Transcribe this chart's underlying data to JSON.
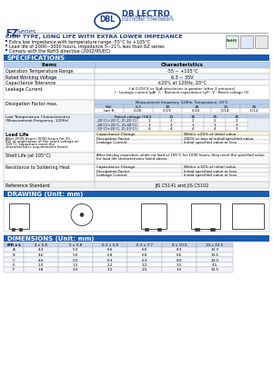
{
  "bg_color": "#ffffff",
  "title_series": "FZ Series",
  "chip_type_title": "CHIP TYPE, LONG LIFE WITH EXTRA LOWER IMPEDANCE",
  "features": [
    "Extra low impedance with temperature range -55°C to +105°C",
    "Load life of 2000~3000 hours, impedance 5~21% less than RZ series",
    "Comply with the RoHS directive (2002/95/EC)"
  ],
  "spec_header": "SPECIFICATIONS",
  "spec_rows": [
    [
      "Operation Temperature Range",
      "-55 ~ +105°C"
    ],
    [
      "Rated Working Voltage",
      "6.3 ~ 35V"
    ],
    [
      "Capacitance Tolerance",
      "±20% at 120Hz, 20°C"
    ]
  ],
  "leakage_label": "Leakage Current",
  "leakage_formula": "I ≤ 0.01CV or 3μA whichever is greater (after 2 minutes)",
  "leakage_subhead": [
    "I : Leakage current (μA)",
    "C : Nominal capacitance (μF)",
    "V : Rated voltage (V)"
  ],
  "dissipation_label": "Dissipation Factor max.",
  "dissipation_freq": "Measurement frequency: 120Hz, Temperature: 20°C",
  "dissipation_headers": [
    "WV",
    "6.3",
    "10",
    "16",
    "25",
    "35"
  ],
  "dissipation_values": [
    "tan δ",
    "0.26",
    "0.19",
    "0.16",
    "0.14",
    "0.12"
  ],
  "low_temp_label": "Low Temperature Characteristics\n(Measurement Frequency: 120Hz)",
  "low_temp_headers": [
    "Rated voltage (V)",
    "6.3",
    "10",
    "16",
    "25",
    "35"
  ],
  "low_temp_rows": [
    [
      "-25°C/+20°C, Z(-25°C)",
      "2",
      "2",
      "2",
      "2",
      "2"
    ],
    [
      "-40°C/+20°C, Z(-40°C)",
      "3",
      "3",
      "3",
      "3",
      "3"
    ],
    [
      "-55°C/+20°C, Z(-55°C)",
      "4",
      "4",
      "4",
      "4",
      "3"
    ]
  ],
  "load_label": "Load Life",
  "load_text1": "After 2000 hours (3000 hours for 35,",
  "load_text2": "6V) at application of the rated voltage at",
  "load_text3": "105°C, capacitors meet the",
  "load_text4": "characteristics requirements listed.",
  "load_rows": [
    [
      "Capacitance Change",
      "Within ±20% of initial value"
    ],
    [
      "Dissipation Factor",
      "200% or less of initial/specified value"
    ],
    [
      "Leakage Current",
      "Initial specified value or less"
    ]
  ],
  "shelf_label": "Shelf Life (at 105°C)",
  "shelf_text1": "After leaving capacitors under no load at 105°C for 1000 hours, they meet the specified value",
  "shelf_text2": "for load life characteristics listed above.",
  "solder_label": "Resistance to Soldering Heat",
  "solder_rows": [
    [
      "Capacitance Change",
      "Within ±10% of initial value"
    ],
    [
      "Dissipation Factor",
      "Initial specified value or less"
    ],
    [
      "Leakage Current",
      "Initial specified value or less"
    ]
  ],
  "ref_label": "Reference Standard",
  "ref_value": "JIS C5141 and JIS C5102",
  "drawing_header": "DRAWING (Unit: mm)",
  "dimensions_header": "DIMENSIONS (Unit: mm)",
  "dim_headers": [
    "ØD x L",
    "4 x 5.8",
    "5 x 5.8",
    "6.3 x 5.8",
    "6.3 x 7.7",
    "8 x 10.5",
    "10 x 10.5"
  ],
  "dim_rows": [
    [
      "A",
      "4.3",
      "5.3",
      "6.6",
      "6.6",
      "8.3",
      "10.3"
    ],
    [
      "B",
      "4.6",
      "5.6",
      "6.8",
      "6.8",
      "8.6",
      "10.6"
    ],
    [
      "C",
      "4.0",
      "5.0",
      "6.3",
      "6.3",
      "8.0",
      "10.0"
    ],
    [
      "E",
      "1.0",
      "1.5",
      "2.2",
      "2.2",
      "3.5",
      "4.5"
    ],
    [
      "F",
      "1.8",
      "2.0",
      "2.5",
      "2.5",
      "3.5",
      "10.5"
    ]
  ],
  "header_blue": "#1a3b8c",
  "section_blue": "#1a5cb0",
  "light_blue_fill": "#b8d0f0",
  "text_blue": "#1a3b8c",
  "text_dark": "#000000"
}
